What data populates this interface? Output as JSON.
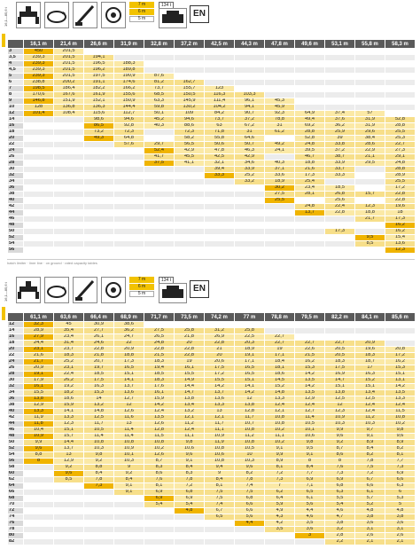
{
  "language_code": "EN",
  "table1": {
    "side_label": "16,1—85,6 t",
    "tag": "134 t",
    "badge": {
      "top": "7 m",
      "mid": "6 m",
      "bot": "5 m"
    },
    "columns": [
      "16,1 m",
      "21,4 m",
      "26,6 m",
      "31,9 m",
      "32,8 m",
      "37,2 m",
      "42,5 m",
      "44,3 m",
      "47,8 m",
      "49,6 m",
      "53,1 m",
      "55,8 m",
      "58,3 m"
    ],
    "rows": [
      {
        "r": "3",
        "c": [
          "450",
          "201,5",
          "",
          "",
          "",
          "",
          "",
          "",
          "",
          "",
          "",
          "",
          ""
        ]
      },
      {
        "r": "3,5",
        "c": [
          "239,3",
          "201,5",
          "194,1",
          "",
          "",
          "",
          "",
          "",
          "",
          "",
          "",
          "",
          ""
        ]
      },
      {
        "r": "4",
        "c": [
          "239,3",
          "201,5",
          "196,5",
          "188,3",
          "",
          "",
          "",
          "",
          "",
          "",
          "",
          "",
          ""
        ]
      },
      {
        "r": "4,5",
        "c": [
          "239,3",
          "201,5",
          "196,2",
          "189,8",
          "",
          "",
          "",
          "",
          "",
          "",
          "",
          "",
          ""
        ]
      },
      {
        "r": "5",
        "c": [
          "239,3",
          "201,5",
          "197,5",
          "190,9",
          "87,6",
          "",
          "",
          "",
          "",
          "",
          "",
          "",
          ""
        ]
      },
      {
        "r": "6",
        "c": [
          "238,8",
          "200,2",
          "191,1",
          "174,6",
          "81,2",
          "162,7",
          "",
          "",
          "",
          "",
          "",
          "",
          ""
        ]
      },
      {
        "r": "7",
        "c": [
          "198,5",
          "186,4",
          "182,2",
          "166,2",
          "73,7",
          "155,7",
          "123",
          "",
          "",
          "",
          "",
          "",
          ""
        ]
      },
      {
        "r": "8",
        "c": [
          "170,6",
          "167,6",
          "161,9",
          "155,6",
          "68,5",
          "150,5",
          "116,3",
          "103,3",
          "",
          "",
          "",
          "",
          ""
        ]
      },
      {
        "r": "9",
        "c": [
          "146,8",
          "151,9",
          "152,1",
          "150,9",
          "63,3",
          "145,9",
          "111,4",
          "96,1",
          "45,3",
          "",
          "",
          "",
          ""
        ]
      },
      {
        "r": "10",
        "c": [
          "128",
          "136,8",
          "136,3",
          "144,4",
          "59,8",
          "130,2",
          "104,2",
          "94,1",
          "45,9",
          "",
          "",
          "",
          ""
        ]
      },
      {
        "r": "12",
        "c": [
          "101,4",
          "108,4",
          "115,6",
          "112,7",
          "50,1",
          "109",
          "84,2",
          "90,7",
          "92,3",
          "64,9",
          "37,4",
          "57",
          ""
        ]
      },
      {
        "r": "14",
        "c": [
          "",
          "",
          "98,6",
          "94,6",
          "45,2",
          "94,6",
          "73,7",
          "37,2",
          "78,8",
          "49,4",
          "37,6",
          "31,9",
          "52,8"
        ]
      },
      {
        "r": "16",
        "c": [
          "",
          "",
          "86,5",
          "92,8",
          "40,3",
          "88,6",
          "63",
          "67,2",
          "31",
          "69,2",
          "36,2",
          "31,9",
          "28,8"
        ]
      },
      {
        "r": "18",
        "c": [
          "",
          "",
          "73,2",
          "72,3",
          "",
          "72,3",
          "71,8",
          "31",
          "61,2",
          "28,8",
          "25,9",
          "29,6",
          "25,5"
        ]
      },
      {
        "r": "20",
        "c": [
          "",
          "",
          "49,3",
          "64,8",
          "",
          "58,2",
          "55,8",
          "64,6",
          "",
          "52,8",
          "39",
          "38,4",
          "25,3"
        ]
      },
      {
        "r": "22",
        "c": [
          "",
          "",
          "",
          "57,6",
          "29,7",
          "56,5",
          "50,6",
          "50,7",
          "49,2",
          "24,8",
          "33,8",
          "28,6",
          "22,7"
        ]
      },
      {
        "r": "24",
        "c": [
          "",
          "",
          "",
          "",
          "52,4",
          "42,9",
          "47,8",
          "46,3",
          "24,1",
          "39,5",
          "37,2",
          "22,9",
          "27,3"
        ]
      },
      {
        "r": "26",
        "c": [
          "",
          "",
          "",
          "",
          "41,7",
          "45,5",
          "42,5",
          "42,9",
          "",
          "46,7",
          "38,7",
          "21,1",
          "29,1"
        ]
      },
      {
        "r": "28",
        "c": [
          "",
          "",
          "",
          "",
          "37,5",
          "41,1",
          "32,1",
          "34,6",
          "40,3",
          "18,8",
          "33,9",
          "29,5",
          "24,8"
        ]
      },
      {
        "r": "30",
        "c": [
          "",
          "",
          "",
          "",
          "",
          "",
          "39,4",
          "33,9",
          "37,1",
          "21,6",
          "33,7",
          "",
          "28,8"
        ]
      },
      {
        "r": "32",
        "c": [
          "",
          "",
          "",
          "",
          "",
          "",
          "33,3",
          "25,2",
          "33,6",
          "17,3",
          "33,3",
          "",
          "28,9"
        ]
      },
      {
        "r": "34",
        "c": [
          "",
          "",
          "",
          "",
          "",
          "",
          "",
          "33,2",
          "18,9",
          "25,4",
          "",
          "",
          "25,5"
        ]
      },
      {
        "r": "36",
        "c": [
          "",
          "",
          "",
          "",
          "",
          "",
          "",
          "",
          "30,2",
          "23,4",
          "18,5",
          "",
          "17,2"
        ]
      },
      {
        "r": "38",
        "c": [
          "",
          "",
          "",
          "",
          "",
          "",
          "",
          "",
          "27,5",
          "28,1",
          "26,8",
          "15,7",
          "22,8"
        ]
      },
      {
        "r": "40",
        "c": [
          "",
          "",
          "",
          "",
          "",
          "",
          "",
          "",
          "25,5",
          "",
          "25,6",
          "",
          "22,8"
        ]
      },
      {
        "r": "42",
        "c": [
          "",
          "",
          "",
          "",
          "",
          "",
          "",
          "",
          "",
          "24,8",
          "22,4",
          "12,3",
          "19,6"
        ]
      },
      {
        "r": "44",
        "c": [
          "",
          "",
          "",
          "",
          "",
          "",
          "",
          "",
          "",
          "13,7",
          "22,8",
          "18,8",
          "18"
        ]
      },
      {
        "r": "46",
        "c": [
          "",
          "",
          "",
          "",
          "",
          "",
          "",
          "",
          "",
          "",
          "",
          "21,7",
          "17,3"
        ]
      },
      {
        "r": "48",
        "c": [
          "",
          "",
          "",
          "",
          "",
          "",
          "",
          "",
          "",
          "",
          "",
          "",
          "16,2"
        ]
      },
      {
        "r": "50",
        "c": [
          "",
          "",
          "",
          "",
          "",
          "",
          "",
          "",
          "",
          "",
          "17,3",
          "",
          "16,2"
        ]
      },
      {
        "r": "52",
        "c": [
          "",
          "",
          "",
          "",
          "",
          "",
          "",
          "",
          "",
          "",
          "",
          "9,5",
          "15,4"
        ]
      },
      {
        "r": "54",
        "c": [
          "",
          "",
          "",
          "",
          "",
          "",
          "",
          "",
          "",
          "",
          "",
          "8,5",
          "13,6"
        ]
      },
      {
        "r": "56",
        "c": [
          "",
          "",
          "",
          "",
          "",
          "",
          "",
          "",
          "",
          "",
          "",
          "",
          "12,3"
        ]
      }
    ],
    "footer": "hatch limiter · liner line · on ground · rated capacity tables"
  },
  "table2": {
    "side_label": "16,1—85,6 t",
    "tag": "134 t",
    "badge": {
      "top": "7 m",
      "mid": "6 m",
      "bot": "5 m"
    },
    "columns": [
      "61,1 m",
      "63,6 m",
      "66,4 m",
      "68,9 m",
      "71,7 m",
      "73,5 m",
      "74,2 m",
      "77 m",
      "78,8 m",
      "79,5 m",
      "82,2 m",
      "84,1 m",
      "85,6 m"
    ],
    "rows": [
      {
        "r": "12",
        "c": [
          "32,3",
          "45",
          "30,9",
          "38,6",
          "",
          "",
          "",
          "",
          "",
          "",
          "",
          "",
          ""
        ]
      },
      {
        "r": "14",
        "c": [
          "28,9",
          "35,4",
          "27,7",
          "36,2",
          "27,5",
          "25,8",
          "31,2",
          "25,8",
          "",
          "",
          "",
          "",
          ""
        ]
      },
      {
        "r": "16",
        "c": [
          "27,9",
          "23,4",
          "26,1",
          "24,7",
          "26,5",
          "21,8",
          "26,9",
          "22,5",
          "22,7",
          "",
          "",
          "",
          ""
        ]
      },
      {
        "r": "18",
        "c": [
          "24,4",
          "31,4",
          "24,6",
          "22",
          "24,8",
          "20",
          "22,8",
          "20,3",
          "22,7",
          "22,7",
          "22,7",
          "20,9",
          ""
        ]
      },
      {
        "r": "20",
        "c": [
          "23,1",
          "23,7",
          "22,8",
          "20,9",
          "22,8",
          "22,8",
          "21",
          "18,9",
          "19",
          "22,6",
          "20,5",
          "19,6",
          "20,8"
        ]
      },
      {
        "r": "22",
        "c": [
          "21,6",
          "18,3",
          "21,8",
          "18,8",
          "21,5",
          "22,8",
          "20",
          "19,1",
          "17,1",
          "21,5",
          "20,5",
          "18,3",
          "17,2"
        ]
      },
      {
        "r": "24",
        "c": [
          "21,7",
          "25,2",
          "20,7",
          "17,3",
          "18,3",
          "19",
          "20,6",
          "17,1",
          "18,4",
          "16,2",
          "18,3",
          "18,7",
          "16,2"
        ]
      },
      {
        "r": "26",
        "c": [
          "20,9",
          "23,1",
          "19,7",
          "16,5",
          "19,4",
          "16,1",
          "17,5",
          "16,5",
          "18,1",
          "15,3",
          "17,5",
          "17",
          "15,3"
        ]
      },
      {
        "r": "28",
        "c": [
          "19,1",
          "22,4",
          "18,5",
          "15,1",
          "18,5",
          "15,5",
          "17,2",
          "16,5",
          "18,6",
          "14,2",
          "16,9",
          "16,3",
          "15,1"
        ]
      },
      {
        "r": "30",
        "c": [
          "17,9",
          "26,2",
          "17,5",
          "14,1",
          "18,3",
          "14,9",
          "15,5",
          "15,1",
          "14,5",
          "13,5",
          "14,7",
          "15,2",
          "13,1"
        ]
      },
      {
        "r": "32",
        "c": [
          "16,1",
          "19,2",
          "16,3",
          "13,7",
          "17,6",
          "14,4",
          "14,2",
          "14,1",
          "15,2",
          "14,2",
          "15,1",
          "15,1",
          "14,2"
        ]
      },
      {
        "r": "34",
        "c": [
          "15,5",
          "18,2",
          "15,3",
          "13,6",
          "16,1",
          "14,7",
          "13,7",
          "14,2",
          "14,8",
          "13,5",
          "13,8",
          "13,4",
          "13,5"
        ]
      },
      {
        "r": "36",
        "c": [
          "13,8",
          "18,6",
          "14",
          "12,7",
          "15,9",
          "13,8",
          "13,6",
          "12",
          "13,3",
          "12,9",
          "12,5",
          "12,5",
          "13,3"
        ]
      },
      {
        "r": "38",
        "c": [
          "12,9",
          "15,9",
          "13,2",
          "12",
          "14,2",
          "13,4",
          "13,3",
          "13,8",
          "12,4",
          "12,4",
          "12",
          "12,4",
          "12,4"
        ]
      },
      {
        "r": "40",
        "c": [
          "13,3",
          "14,1",
          "14,8",
          "12,6",
          "12,4",
          "13,2",
          "13",
          "12,8",
          "12,1",
          "12,7",
          "12,3",
          "12,4",
          "11,5"
        ]
      },
      {
        "r": "42",
        "c": [
          "11,9",
          "13,3",
          "12,5",
          "11,6",
          "13,5",
          "12,1",
          "12,1",
          "11,7",
          "10,8",
          "11,4",
          "10,9",
          "11,2",
          "10,8"
        ]
      },
      {
        "r": "44",
        "c": [
          "11,8",
          "12,3",
          "11,7",
          "13",
          "12,6",
          "11,2",
          "11,7",
          "10,7",
          "10,8",
          "10,5",
          "10,3",
          "10,3",
          "10,2"
        ]
      },
      {
        "r": "46",
        "c": [
          "10,4",
          "15,1",
          "10,5",
          "11,4",
          "12,8",
          "12,4",
          "11,1",
          "10,8",
          "10,2",
          "10,1",
          "9,9",
          "9,7",
          "9,8"
        ]
      },
      {
        "r": "48",
        "c": [
          "10,9",
          "15,7",
          "11,4",
          "11,4",
          "11,5",
          "11,1",
          "10,9",
          "11,2",
          "11,1",
          "10,6",
          "9,6",
          "9,1",
          "9,6"
        ]
      },
      {
        "r": "50",
        "c": [
          "9,9",
          "14,4",
          "10,8",
          "10,8",
          "10,8",
          "9,8",
          "11,9",
          "10,8",
          "10,2",
          "9,8",
          "9,2",
          "8,9",
          "8,9"
        ]
      },
      {
        "r": "52",
        "c": [
          "9,6",
          "13,7",
          "10,3",
          "10,9",
          "10,2",
          "10,6",
          "10,8",
          "10,5",
          "9,1",
          "9,5",
          "8,7",
          "8,4",
          "8,2"
        ]
      },
      {
        "r": "54",
        "c": [
          "8,8",
          "13",
          "9,8",
          "10,1",
          "12,6",
          "9,6",
          "10,6",
          "10",
          "9,9",
          "9,1",
          "8,6",
          "8,2",
          "8,1"
        ]
      },
      {
        "r": "56",
        "c": [
          "8",
          "12,9",
          "9,2",
          "10,3",
          "8,7",
          "9,1",
          "10,8",
          "10,3",
          "8,9",
          "8",
          "8",
          "7,8",
          "7,7"
        ]
      },
      {
        "r": "58",
        "c": [
          "",
          "9,2",
          "8,8",
          "9",
          "8,3",
          "8,4",
          "9,4",
          "9,6",
          "8,1",
          "8,4",
          "7,6",
          "7,5",
          "7,3"
        ]
      },
      {
        "r": "60",
        "c": [
          "",
          "9,6",
          "8,4",
          "9,2",
          "8,6",
          "8,3",
          "9",
          "8,2",
          "7,2",
          "7,7",
          "7,3",
          "7,2",
          "6,9"
        ]
      },
      {
        "r": "62",
        "c": [
          "",
          "8,5",
          "7,8",
          "8,4",
          "7,6",
          "7,8",
          "8,4",
          "7,8",
          "7,3",
          "6,9",
          "6,9",
          "6,7",
          "6,6"
        ]
      },
      {
        "r": "64",
        "c": [
          "",
          "",
          "7,3",
          "9,1",
          "8,1",
          "7,2",
          "8,1",
          "7,4",
          "7",
          "7,1",
          "6,8",
          "6,6",
          "6,3"
        ]
      },
      {
        "r": "66",
        "c": [
          "",
          "",
          "",
          "9,1",
          "6,9",
          "6,8",
          "7,5",
          "7,5",
          "6,2",
          "6,5",
          "6,3",
          "6,1",
          "6"
        ]
      },
      {
        "r": "68",
        "c": [
          "",
          "",
          "",
          "",
          "6,9",
          "6,9",
          "7,5",
          "6,8",
          "6,4",
          "6,1",
          "5,5",
          "5,7",
          "5,3"
        ]
      },
      {
        "r": "70",
        "c": [
          "",
          "",
          "",
          "",
          "5,4",
          "5,4",
          "7,4",
          "6,6",
          "5,9",
          "5,6",
          "5,4",
          "5,2",
          "5"
        ]
      },
      {
        "r": "72",
        "c": [
          "",
          "",
          "",
          "",
          "",
          "4,8",
          "6,7",
          "6,6",
          "4,9",
          "4,4",
          "4,6",
          "4,8",
          "4,8"
        ]
      },
      {
        "r": "74",
        "c": [
          "",
          "",
          "",
          "",
          "",
          "",
          "6,5",
          "5,6",
          "4,3",
          "4,6",
          "4,7",
          "3,8",
          "3,8"
        ]
      },
      {
        "r": "76",
        "c": [
          "",
          "",
          "",
          "",
          "",
          "",
          "",
          "4,4",
          "4,2",
          "3,5",
          "3,8",
          "3,6",
          "3,6"
        ]
      },
      {
        "r": "78",
        "c": [
          "",
          "",
          "",
          "",
          "",
          "",
          "",
          "",
          "3,5",
          "3,6",
          "3,2",
          "3,1",
          "3,1"
        ]
      },
      {
        "r": "80",
        "c": [
          "",
          "",
          "",
          "",
          "",
          "",
          "",
          "",
          "",
          "3",
          "2,8",
          "2,6",
          "2,6"
        ]
      },
      {
        "r": "82",
        "c": [
          "",
          "",
          "",
          "",
          "",
          "",
          "",
          "",
          "",
          "",
          "2,2",
          "2,1",
          "2,1"
        ]
      }
    ]
  }
}
